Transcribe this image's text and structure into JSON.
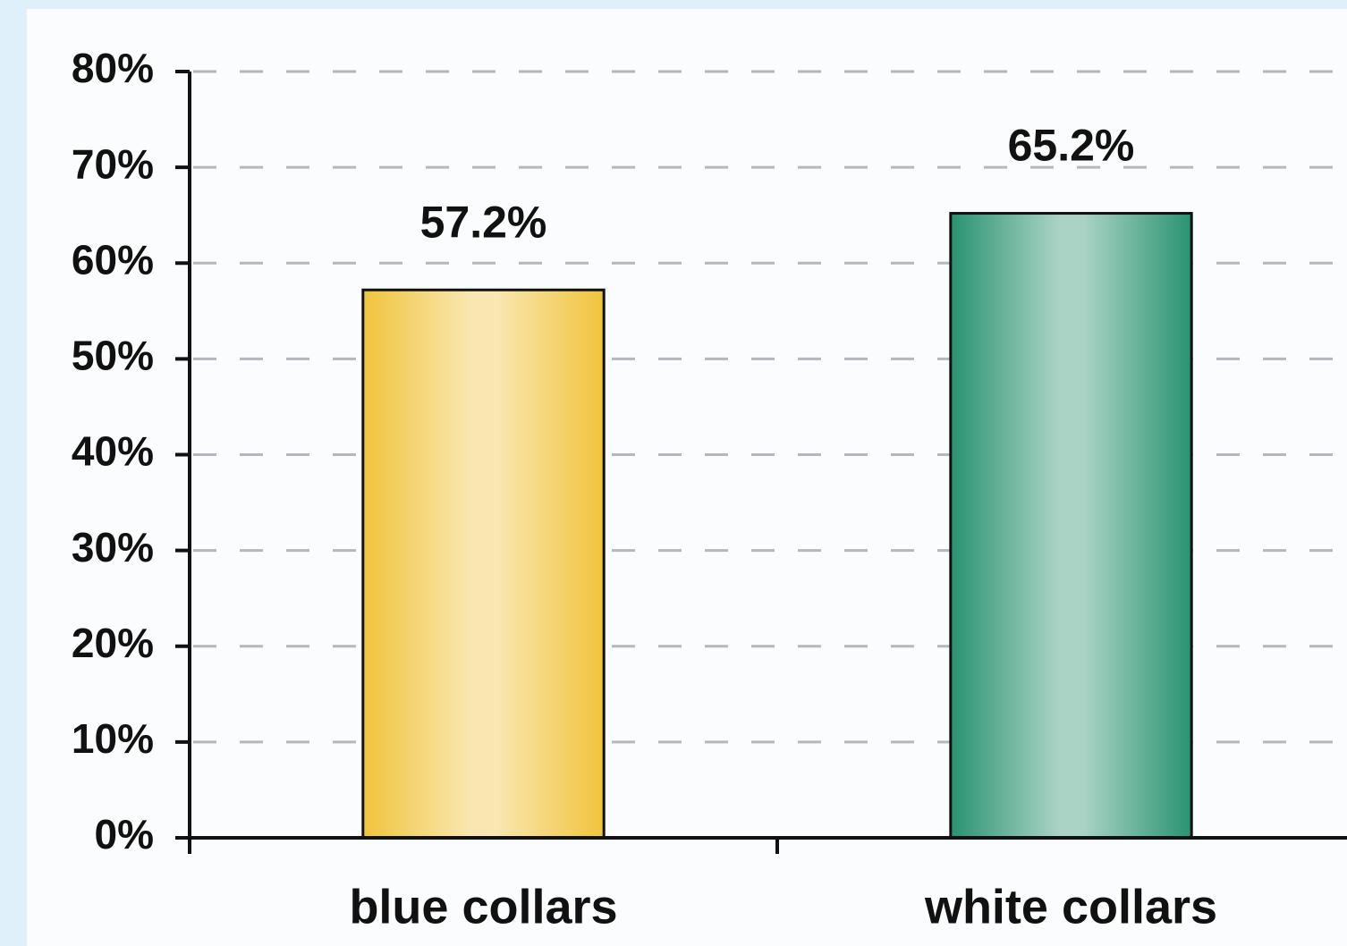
{
  "chart_data": {
    "type": "bar",
    "categories": [
      "blue collars",
      "white collars"
    ],
    "values": [
      57.2,
      65.2
    ],
    "value_labels": [
      "57.2%",
      "65.2%"
    ],
    "colors": [
      "#f0c43c",
      "#2a9270"
    ],
    "ylim": [
      0,
      80
    ],
    "yticks": [
      {
        "value": 0,
        "label": "0%"
      },
      {
        "value": 10,
        "label": "10%"
      },
      {
        "value": 20,
        "label": "20%"
      },
      {
        "value": 30,
        "label": "30%"
      },
      {
        "value": 40,
        "label": "40%"
      },
      {
        "value": 50,
        "label": "50%"
      },
      {
        "value": 60,
        "label": "60%"
      },
      {
        "value": 70,
        "label": "70%"
      },
      {
        "value": 80,
        "label": "80%"
      }
    ],
    "grid": true
  }
}
